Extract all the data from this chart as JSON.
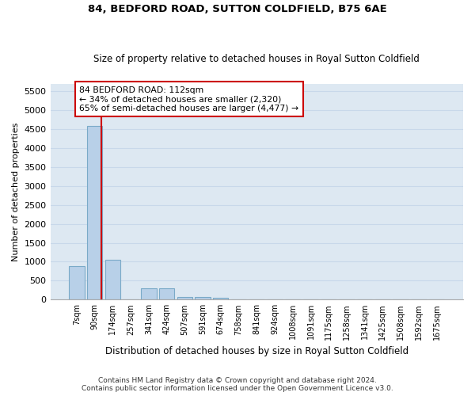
{
  "title1": "84, BEDFORD ROAD, SUTTON COLDFIELD, B75 6AE",
  "title2": "Size of property relative to detached houses in Royal Sutton Coldfield",
  "xlabel": "Distribution of detached houses by size in Royal Sutton Coldfield",
  "ylabel": "Number of detached properties",
  "footnote1": "Contains HM Land Registry data © Crown copyright and database right 2024.",
  "footnote2": "Contains public sector information licensed under the Open Government Licence v3.0.",
  "bar_color": "#b8d0e8",
  "bar_edge_color": "#7aaac8",
  "grid_color": "#c8d8ea",
  "background_color": "#dde8f2",
  "annotation_box_edgecolor": "#cc0000",
  "vline_color": "#cc0000",
  "categories": [
    "7sqm",
    "90sqm",
    "174sqm",
    "257sqm",
    "341sqm",
    "424sqm",
    "507sqm",
    "591sqm",
    "674sqm",
    "758sqm",
    "841sqm",
    "924sqm",
    "1008sqm",
    "1091sqm",
    "1175sqm",
    "1258sqm",
    "1341sqm",
    "1425sqm",
    "1508sqm",
    "1592sqm",
    "1675sqm"
  ],
  "values": [
    880,
    4580,
    1060,
    0,
    290,
    290,
    75,
    75,
    50,
    0,
    0,
    0,
    0,
    0,
    0,
    0,
    0,
    0,
    0,
    0,
    0
  ],
  "ylim": [
    0,
    5700
  ],
  "yticks": [
    0,
    500,
    1000,
    1500,
    2000,
    2500,
    3000,
    3500,
    4000,
    4500,
    5000,
    5500
  ],
  "annotation_text": "84 BEDFORD ROAD: 112sqm\n← 34% of detached houses are smaller (2,320)\n65% of semi-detached houses are larger (4,477) →"
}
